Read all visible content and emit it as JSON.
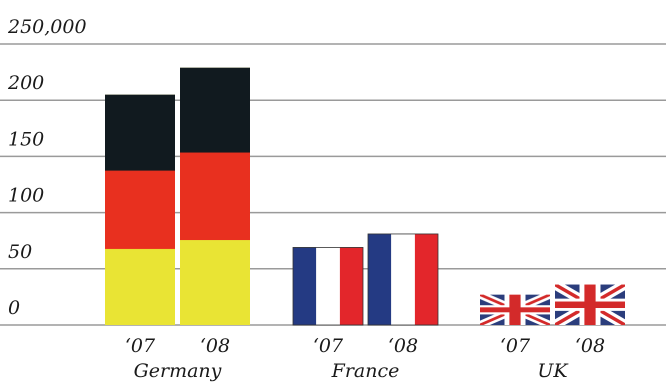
{
  "chart_data": {
    "type": "bar",
    "categories": [
      "Germany",
      "France",
      "UK"
    ],
    "series": [
      {
        "name": "‘07",
        "values": [
          205,
          69,
          27
        ]
      },
      {
        "name": "‘08",
        "values": [
          229,
          81,
          36
        ]
      }
    ],
    "ylim": [
      0,
      250
    ],
    "yticks": [
      0,
      50,
      100,
      150,
      200,
      {
        "value": 250,
        "label": "250,000"
      }
    ],
    "grid": true
  }
}
